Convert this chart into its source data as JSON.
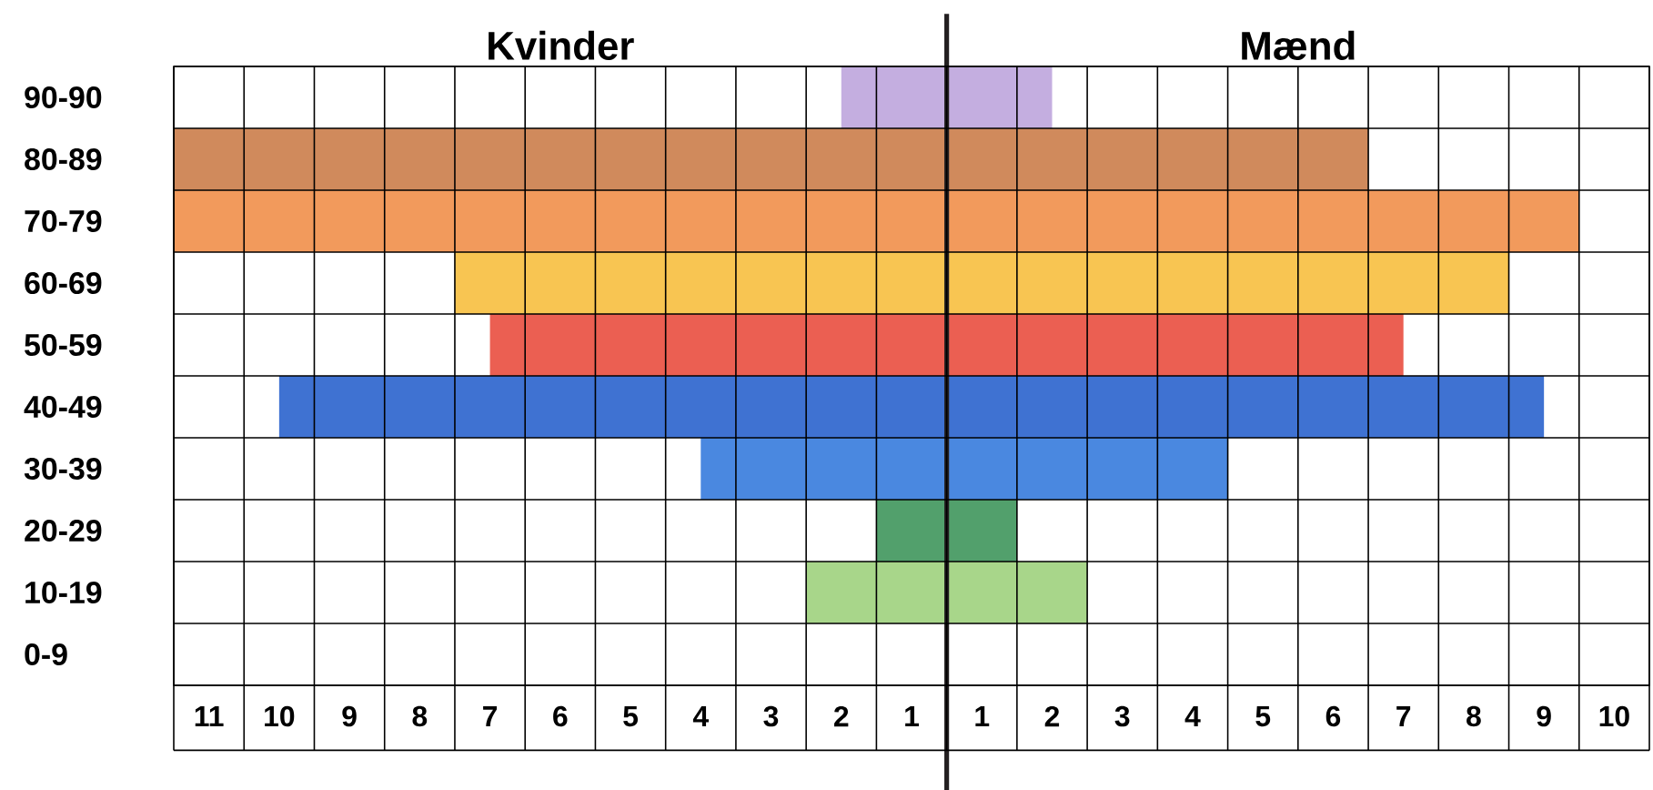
{
  "chart_data": {
    "type": "bar",
    "orientation": "horizontal",
    "stacked": true,
    "categories": [
      "90-90",
      "80-89",
      "70-79",
      "60-69",
      "50-59",
      "40-49",
      "30-39",
      "20-29",
      "10-19",
      "0-9"
    ],
    "series": [
      {
        "name": "Kvinder",
        "values": [
          -1.5,
          -11,
          -11,
          -7,
          -6.5,
          -9.5,
          -3.5,
          -1,
          -2,
          0
        ],
        "colors": [
          "#c4aee0",
          "#d08a5c",
          "#f29a5c",
          "#f8c552",
          "#eb5f52",
          "#3f72d2",
          "#4a88e0",
          "#52a06c",
          "#a8d68a",
          null
        ]
      },
      {
        "name": "Mænd",
        "values": [
          1.5,
          6,
          9,
          8,
          6.5,
          8.5,
          4,
          1,
          2,
          0
        ],
        "colors": [
          "#c4aee0",
          "#d08a5c",
          "#f29a5c",
          "#f8c552",
          "#eb5f52",
          "#3f72d2",
          "#4a88e0",
          "#52a06c",
          "#a8d68a",
          null
        ]
      }
    ],
    "xlim": [
      -11,
      10
    ],
    "xticks": [
      {
        "value": -10.5,
        "label": "11"
      },
      {
        "value": -9.5,
        "label": "10"
      },
      {
        "value": -8.5,
        "label": "9"
      },
      {
        "value": -7.5,
        "label": "8"
      },
      {
        "value": -6.5,
        "label": "7"
      },
      {
        "value": -5.5,
        "label": "6"
      },
      {
        "value": -4.5,
        "label": "5"
      },
      {
        "value": -3.5,
        "label": "4"
      },
      {
        "value": -2.5,
        "label": "3"
      },
      {
        "value": -1.5,
        "label": "2"
      },
      {
        "value": -0.5,
        "label": "1"
      },
      {
        "value": 0.5,
        "label": "1"
      },
      {
        "value": 1.5,
        "label": "2"
      },
      {
        "value": 2.5,
        "label": "3"
      },
      {
        "value": 3.5,
        "label": "4"
      },
      {
        "value": 4.5,
        "label": "5"
      },
      {
        "value": 5.5,
        "label": "6"
      },
      {
        "value": 6.5,
        "label": "7"
      },
      {
        "value": 7.5,
        "label": "8"
      },
      {
        "value": 8.5,
        "label": "9"
      },
      {
        "value": 9.5,
        "label": "10"
      }
    ],
    "grid": true,
    "ref_lines": [
      {
        "axis": "x",
        "value": 0,
        "color": "#231f20"
      }
    ]
  }
}
